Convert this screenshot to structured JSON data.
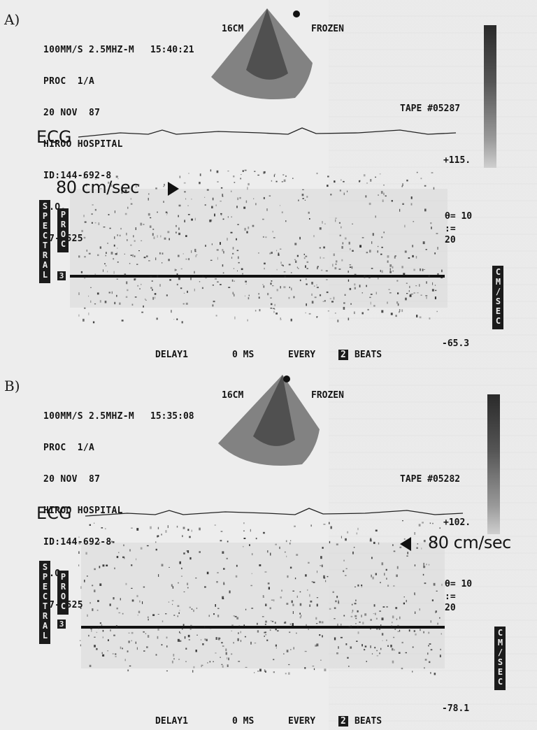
{
  "panels": [
    {
      "letter": "A)",
      "header_lines": [
        "100MM/S 2.5MHZ-M",
        "PROC  1/A",
        "20 NOV  87",
        "HIROO HOSPITAL",
        "ID:144-692-8",
        "H.O.",
        "87-1525"
      ],
      "depth": "16CM",
      "frozen": "FROZEN",
      "time": "15:40:21",
      "tape": "TAPE #05287",
      "vmax": "+115.",
      "theta": "θ= 10",
      "colon": ":=",
      "twenty": "20",
      "vmin": "-65.3",
      "ecg": "ECG",
      "scale": "80 cm/sec",
      "spectral": "SPECTRAL",
      "proc": "PROC",
      "three": "3",
      "cmsec": "CM/SEC",
      "footer": {
        "delay": "DELAY1",
        "ms": "0 MS",
        "every": "EVERY",
        "num": "2",
        "beats": "BEATS"
      }
    },
    {
      "letter": "B)",
      "header_lines": [
        "100MM/S 2.5MHZ-M",
        "PROC  1/A",
        "20 NOV  87",
        "HIROO HOSPITAL",
        "ID:144-692-8",
        "H.O.",
        "87-1525"
      ],
      "depth": "16CM",
      "frozen": "FROZEN",
      "time": "15:35:08",
      "tape": "TAPE #05282",
      "vmax": "+102.",
      "theta": "θ= 10",
      "colon": ":=",
      "twenty": "20",
      "vmin": "-78.1",
      "ecg": "ECG",
      "scale": "80 cm/sec",
      "spectral": "SPECTRAL",
      "proc": "PROC",
      "three": "3",
      "cmsec": "CM/SEC",
      "footer": {
        "delay": "DELAY1",
        "ms": "0 MS",
        "every": "EVERY",
        "num": "2",
        "beats": "BEATS"
      }
    }
  ]
}
